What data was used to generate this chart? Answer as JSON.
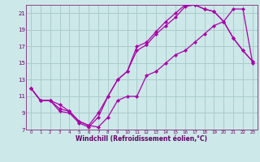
{
  "xlabel": "Windchill (Refroidissement éolien,°C)",
  "bg_color": "#cce8e8",
  "grid_color": "#aacccc",
  "line_color": "#aa00aa",
  "line1_x": [
    0,
    1,
    2,
    3,
    4,
    5,
    6,
    7,
    8,
    9,
    10,
    11,
    12,
    13,
    14,
    15,
    16,
    17,
    18,
    19,
    20,
    21,
    22,
    23
  ],
  "line1_y": [
    12.0,
    10.5,
    10.5,
    9.5,
    9.2,
    8.0,
    7.5,
    7.3,
    8.5,
    10.5,
    11.0,
    11.0,
    13.5,
    14.0,
    15.0,
    16.0,
    16.5,
    17.5,
    18.5,
    19.5,
    20.0,
    21.5,
    21.5,
    15.0
  ],
  "line2_x": [
    0,
    1,
    2,
    3,
    4,
    5,
    6,
    7,
    8,
    9,
    10,
    11,
    12,
    13,
    14,
    15,
    16,
    17,
    18,
    19,
    20,
    21,
    22,
    23
  ],
  "line2_y": [
    12.0,
    10.5,
    10.5,
    10.0,
    9.2,
    8.0,
    7.5,
    9.0,
    11.0,
    13.0,
    14.0,
    16.5,
    17.2,
    18.5,
    19.5,
    20.5,
    21.8,
    22.0,
    21.5,
    21.2,
    20.0,
    18.0,
    16.5,
    15.2
  ],
  "line3_x": [
    0,
    1,
    2,
    3,
    4,
    5,
    6,
    7,
    8,
    9,
    10,
    11,
    12,
    13,
    14,
    15,
    16,
    17,
    18,
    19,
    20,
    21,
    22,
    23
  ],
  "line3_y": [
    12.0,
    10.5,
    10.5,
    9.2,
    9.0,
    7.8,
    7.3,
    8.5,
    11.0,
    13.0,
    14.0,
    17.0,
    17.5,
    18.8,
    20.0,
    21.0,
    22.0,
    22.0,
    21.5,
    21.2,
    20.0,
    18.0,
    16.5,
    15.2
  ],
  "xlim": [
    -0.5,
    23.5
  ],
  "ylim": [
    7,
    22
  ],
  "yticks": [
    7,
    9,
    11,
    13,
    15,
    17,
    19,
    21
  ],
  "xticks": [
    0,
    1,
    2,
    3,
    4,
    5,
    6,
    7,
    8,
    9,
    10,
    11,
    12,
    13,
    14,
    15,
    16,
    17,
    18,
    19,
    20,
    21,
    22,
    23
  ],
  "xtick_fontsize": 4.0,
  "ytick_fontsize": 5.0,
  "xlabel_fontsize": 5.5,
  "lw": 0.9,
  "ms": 2.2
}
